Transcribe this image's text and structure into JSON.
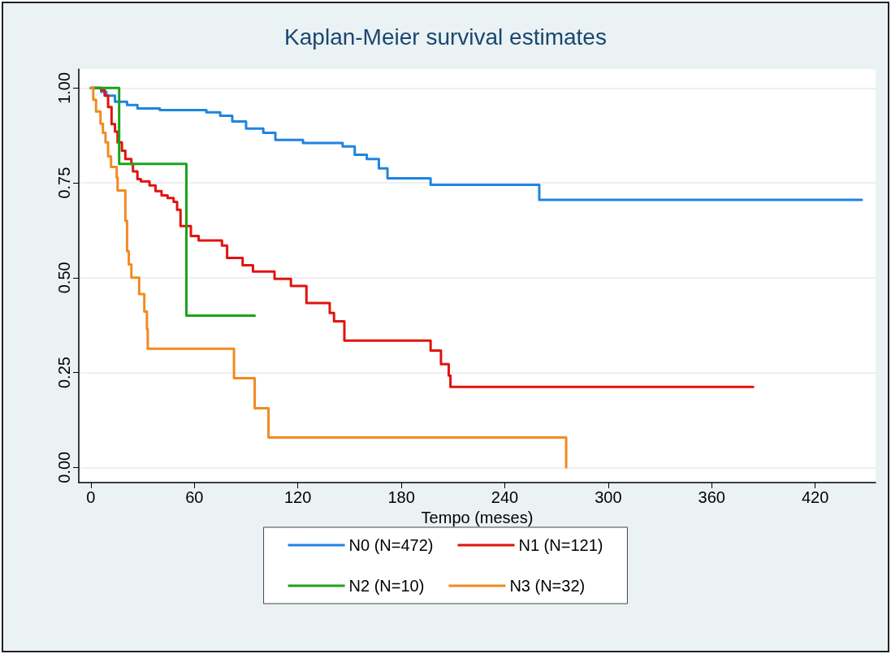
{
  "chart_data": {
    "type": "step",
    "title": "Kaplan-Meier survival estimates",
    "xlabel": "Tempo (meses)",
    "series": [
      {
        "name": "N0 (N=472)",
        "color": "#1f84e0",
        "x": [
          0,
          6,
          9,
          14,
          21,
          27,
          40,
          67,
          75,
          82,
          90,
          100,
          107,
          123,
          146,
          153,
          160,
          167,
          172,
          197,
          260,
          447
        ],
        "values": [
          1,
          0.99,
          0.98,
          0.964,
          0.955,
          0.946,
          0.942,
          0.936,
          0.927,
          0.912,
          0.893,
          0.882,
          0.863,
          0.855,
          0.846,
          0.824,
          0.813,
          0.788,
          0.762,
          0.745,
          0.705,
          0.705
        ]
      },
      {
        "name": "N1 (N=121)",
        "color": "#e0140f",
        "x": [
          0,
          6,
          8,
          10,
          12,
          14,
          15.5,
          18,
          20,
          23.5,
          24.4,
          27,
          29,
          34,
          37.5,
          41,
          44.5,
          48,
          50,
          52,
          58,
          62.5,
          76,
          79,
          88,
          94,
          106.5,
          116,
          125,
          138.5,
          141,
          147,
          197,
          203,
          207.5,
          208.5,
          384
        ],
        "values": [
          1,
          0.995,
          0.98,
          0.95,
          0.905,
          0.885,
          0.857,
          0.835,
          0.813,
          0.8,
          0.78,
          0.76,
          0.754,
          0.743,
          0.728,
          0.717,
          0.71,
          0.7,
          0.679,
          0.636,
          0.61,
          0.598,
          0.585,
          0.552,
          0.533,
          0.516,
          0.497,
          0.478,
          0.433,
          0.407,
          0.385,
          0.334,
          0.308,
          0.272,
          0.242,
          0.212,
          0.212
        ]
      },
      {
        "name": "N2 (N=10)",
        "color": "#1aa31a",
        "x": [
          0,
          16.4,
          55.4,
          95
        ],
        "values": [
          1,
          0.8,
          0.4,
          0.4
        ]
      },
      {
        "name": "N3 (N=32)",
        "color": "#f28a22",
        "x": [
          0,
          1.4,
          3,
          5.6,
          7,
          8.5,
          10,
          11.7,
          15,
          15.5,
          20,
          21,
          22,
          23.5,
          28,
          31,
          32.5,
          33,
          83,
          95,
          103,
          275.6
        ],
        "values": [
          1,
          0.969,
          0.938,
          0.906,
          0.882,
          0.857,
          0.82,
          0.792,
          0.764,
          0.73,
          0.65,
          0.57,
          0.535,
          0.5,
          0.457,
          0.411,
          0.364,
          0.313,
          0.235,
          0.156,
          0.079,
          0
        ]
      }
    ],
    "xlim": [
      -7,
      455
    ],
    "xticks": [
      0,
      60,
      120,
      180,
      240,
      300,
      360,
      420
    ],
    "ylim": [
      -0.04,
      1.05
    ],
    "yticks": [
      {
        "value": 0,
        "label": "0.00"
      },
      {
        "value": 0.25,
        "label": "0.25"
      },
      {
        "value": 0.5,
        "label": "0.50"
      },
      {
        "value": 0.75,
        "label": "0.75"
      },
      {
        "value": 1,
        "label": "1.00"
      }
    ],
    "grid": "y",
    "legend": "bottom",
    "marker": "none",
    "line_style": "solid"
  }
}
